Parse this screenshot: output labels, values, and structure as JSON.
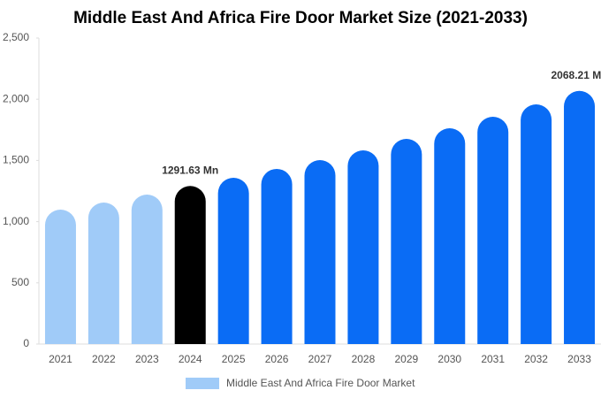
{
  "chart_data": {
    "type": "bar",
    "title": "Middle East And Africa Fire Door Market Size (2021-2033)",
    "categories": [
      "2021",
      "2022",
      "2023",
      "2024",
      "2025",
      "2026",
      "2027",
      "2028",
      "2029",
      "2030",
      "2031",
      "2032",
      "2033"
    ],
    "series": [
      {
        "name": "Middle East And Africa Fire Door Market",
        "color": "#a0cbf8",
        "values": [
          1098,
          1156,
          1221,
          1291.63,
          1358,
          1431,
          1503,
          1582,
          1676,
          1763,
          1857,
          1958,
          2068.21
        ],
        "value_labels": [
          null,
          null,
          null,
          "1291.63 Mn",
          null,
          null,
          null,
          null,
          null,
          null,
          null,
          null,
          "2068.21 Mn"
        ],
        "colors": [
          "#a0cbf8",
          "#a0cbf8",
          "#a0cbf8",
          "#000000",
          "#0a6cf5",
          "#0a6cf5",
          "#0a6cf5",
          "#0a6cf5",
          "#0a6cf5",
          "#0a6cf5",
          "#0a6cf5",
          "#0a6cf5",
          "#0a6cf5"
        ]
      }
    ],
    "ylim": [
      0,
      2500
    ],
    "yticks": [
      0,
      500,
      {
        "value": 1000,
        "label": "1,000"
      },
      {
        "value": 1500,
        "label": "1,500"
      },
      {
        "value": 2000,
        "label": "2,000"
      },
      {
        "value": 2500,
        "label": "2,500"
      }
    ],
    "grid": false
  }
}
